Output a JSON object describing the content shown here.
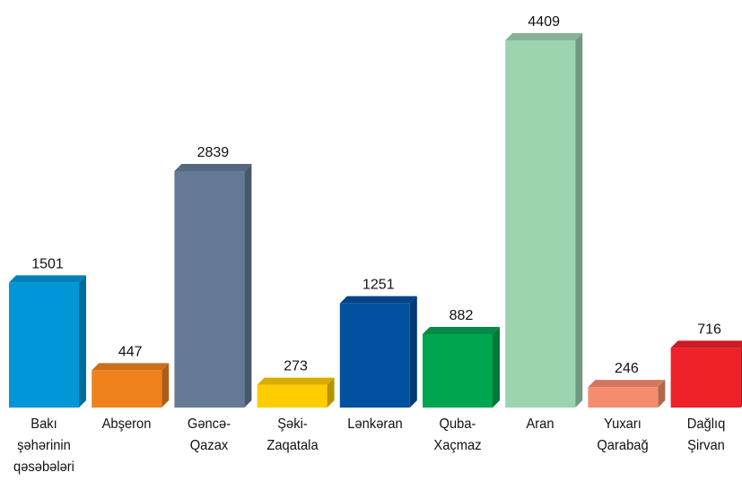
{
  "chart_data": {
    "type": "bar",
    "categories": [
      "Bakı\nşəhərinin\nqəsəbələri",
      "Abşeron",
      "Gəncə-\nQazax",
      "Şəki-\nZaqatala",
      "Lənkəran",
      "Quba-\nXaçmaz",
      "Aran",
      "Yuxarı\nQarabağ",
      "Dağlıq\nŞirvan"
    ],
    "values": [
      1501,
      447,
      2839,
      273,
      1251,
      882,
      4409,
      246,
      716
    ],
    "colors": [
      "#0096d8",
      "#f0821e",
      "#647a96",
      "#ffcc00",
      "#0050a0",
      "#00a550",
      "#9cd4b0",
      "#f58c6e",
      "#ee2028"
    ]
  }
}
